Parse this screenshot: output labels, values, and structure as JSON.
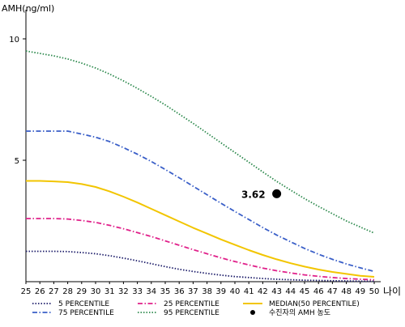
{
  "chart_data": {
    "type": "line",
    "title": "",
    "ylabel": "AMH(ng/ml)",
    "xlabel": "나이",
    "ylim": [
      0,
      11
    ],
    "y_ticks": [
      5,
      10
    ],
    "x": [
      25,
      26,
      27,
      28,
      29,
      30,
      31,
      32,
      33,
      34,
      35,
      36,
      37,
      38,
      39,
      40,
      41,
      42,
      43,
      44,
      45,
      46,
      47,
      48,
      49,
      50
    ],
    "series": [
      {
        "name": "5 PERCENTILE",
        "color": "#1f1f6b",
        "dash": "dotted",
        "values": [
          1.25,
          1.25,
          1.25,
          1.24,
          1.2,
          1.15,
          1.07,
          0.97,
          0.86,
          0.74,
          0.62,
          0.51,
          0.42,
          0.34,
          0.27,
          0.21,
          0.17,
          0.13,
          0.1,
          0.08,
          0.06,
          0.05,
          0.04,
          0.03,
          0.02,
          0.02
        ]
      },
      {
        "name": "25 PERCENTILE",
        "color": "#e0208a",
        "dash": "dashdot",
        "values": [
          2.6,
          2.6,
          2.6,
          2.58,
          2.52,
          2.44,
          2.32,
          2.18,
          2.02,
          1.86,
          1.68,
          1.5,
          1.32,
          1.15,
          0.98,
          0.83,
          0.69,
          0.56,
          0.45,
          0.36,
          0.28,
          0.22,
          0.17,
          0.13,
          0.1,
          0.08
        ]
      },
      {
        "name": "MEDIAN(50 PERCENTILE)",
        "color": "#f2c500",
        "dash": "solid",
        "values": [
          4.15,
          4.15,
          4.13,
          4.1,
          4.02,
          3.9,
          3.72,
          3.5,
          3.26,
          3.0,
          2.74,
          2.48,
          2.22,
          1.98,
          1.74,
          1.52,
          1.3,
          1.1,
          0.92,
          0.76,
          0.62,
          0.5,
          0.4,
          0.32,
          0.24,
          0.2
        ]
      },
      {
        "name": "75 PERCENTILE",
        "color": "#3a5fc8",
        "dash": "dashdot",
        "values": [
          6.2,
          6.2,
          6.2,
          6.2,
          6.08,
          5.95,
          5.77,
          5.52,
          5.25,
          4.95,
          4.62,
          4.28,
          3.93,
          3.58,
          3.23,
          2.89,
          2.56,
          2.23,
          1.92,
          1.64,
          1.37,
          1.13,
          0.92,
          0.73,
          0.57,
          0.42
        ]
      },
      {
        "name": "95 PERCENTILE",
        "color": "#2e8a4e",
        "dash": "dotted",
        "values": [
          9.5,
          9.4,
          9.3,
          9.17,
          9.0,
          8.8,
          8.55,
          8.27,
          7.96,
          7.63,
          7.28,
          6.9,
          6.52,
          6.12,
          5.72,
          5.32,
          4.92,
          4.52,
          4.13,
          3.77,
          3.42,
          3.1,
          2.8,
          2.5,
          2.25,
          2.0
        ]
      }
    ],
    "annotation": {
      "x": 43,
      "y": 3.62,
      "label": "3.62",
      "legend_label": "수진자의 AMH 농도"
    },
    "legend_placement": "bottom",
    "grid": false
  }
}
